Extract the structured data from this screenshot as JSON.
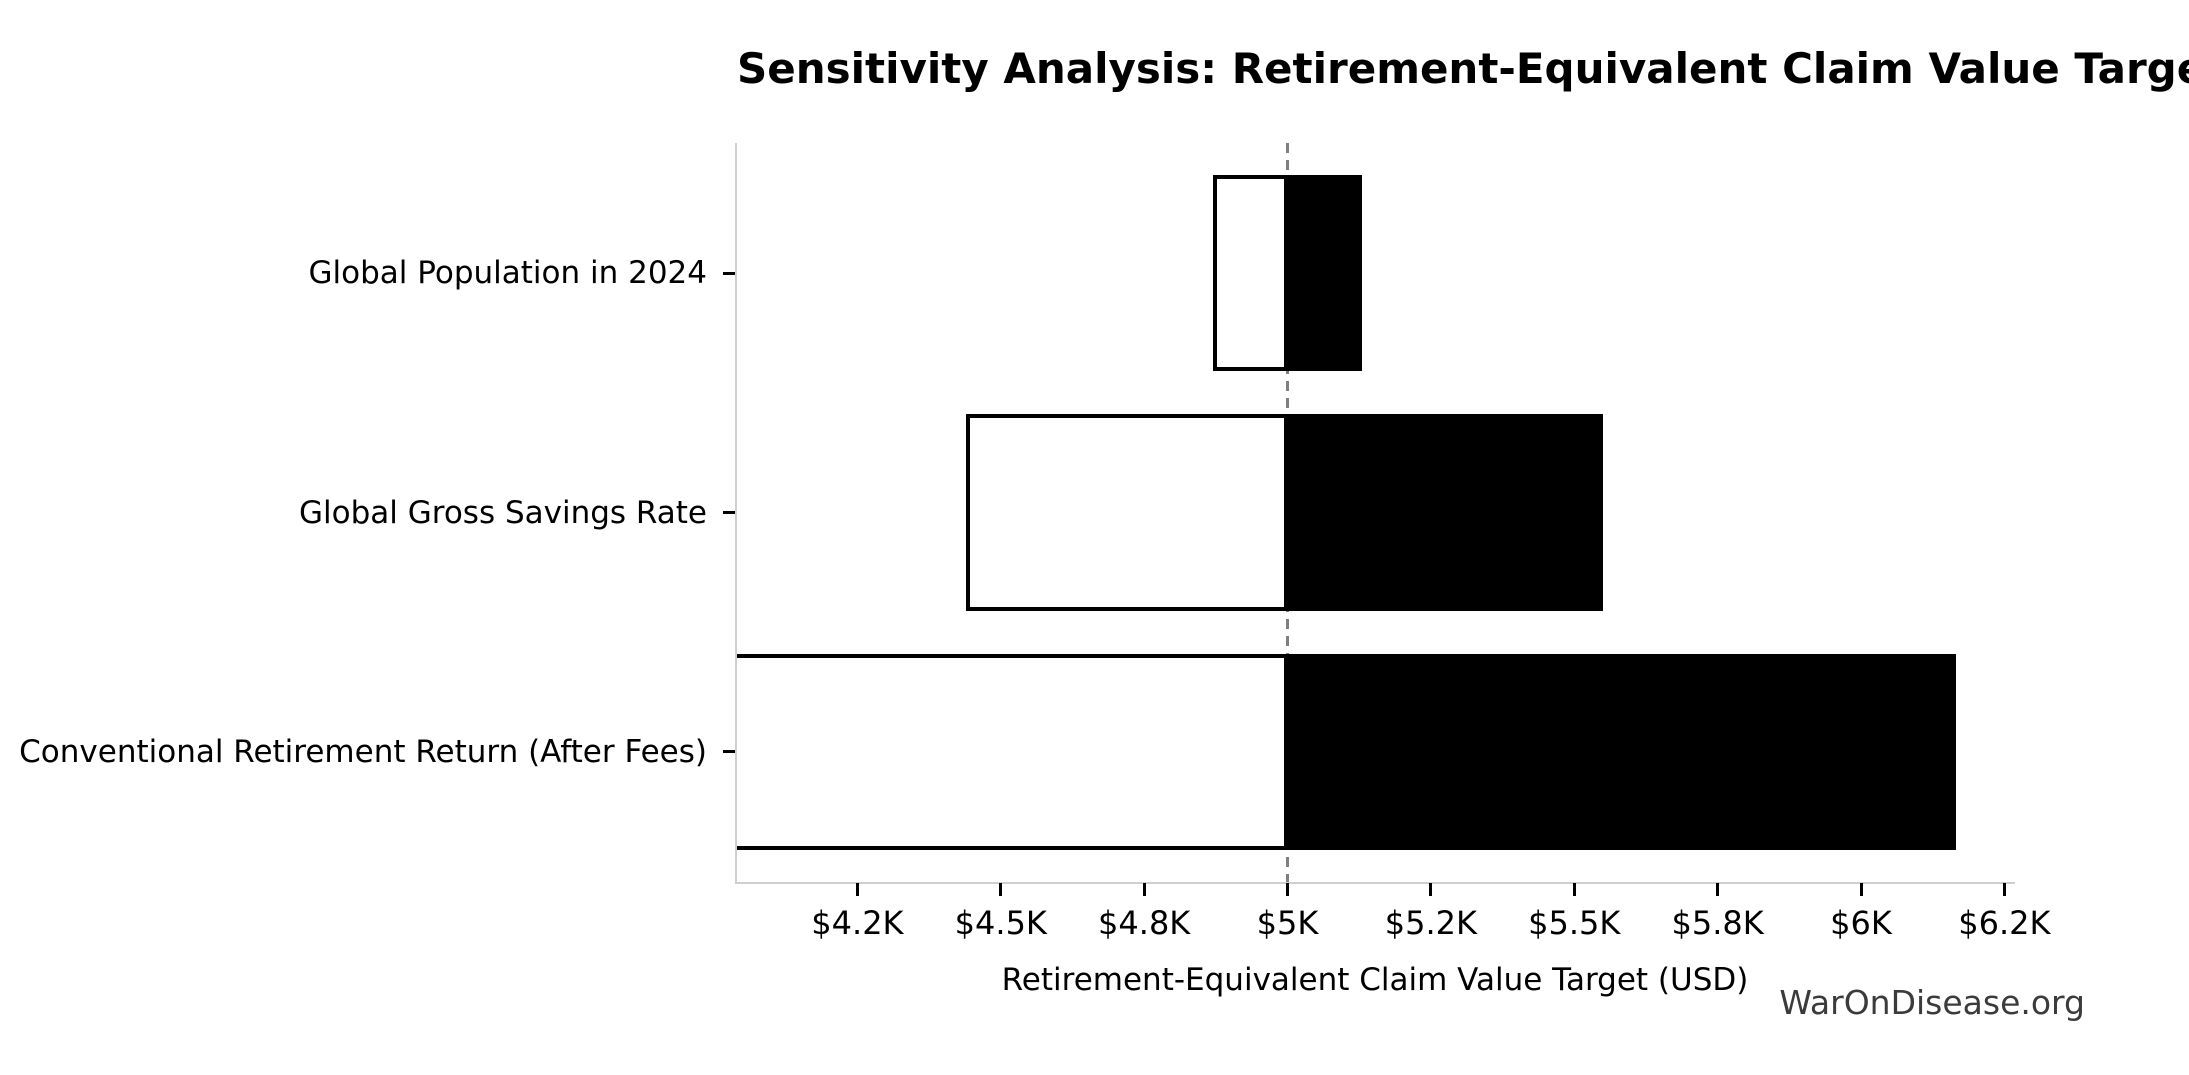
{
  "figure": {
    "watermark": "WarOnDisease.org"
  },
  "chart_data": {
    "type": "bar",
    "subtype": "horizontal-tornado-sensitivity",
    "title": "Sensitivity Analysis: Retirement-Equivalent Claim Value Target",
    "xlabel": "Retirement-Equivalent Claim Value Target (USD)",
    "ylabel": "",
    "baseline_value": 5000,
    "xlim": [
      4040,
      6265
    ],
    "x_tick_values": [
      4250,
      4500,
      4750,
      5000,
      5250,
      5500,
      5750,
      6000,
      6250
    ],
    "x_tick_labels": [
      "$4.2K",
      "$4.5K",
      "$4.8K",
      "$5K",
      "$5.2K",
      "$5.5K",
      "$5.8K",
      "$6K",
      "$6.2K"
    ],
    "categories": [
      "Global Population in 2024",
      "Global Gross Savings Rate",
      "Conventional Retirement Return (After Fees)"
    ],
    "bars": [
      {
        "category": "Global Population in 2024",
        "low": 4870,
        "high": 5130,
        "low_clipped_at_axis": false
      },
      {
        "category": "Global Gross Savings Rate",
        "low": 4440,
        "high": 5550,
        "low_clipped_at_axis": false
      },
      {
        "category": "Conventional Retirement Return (After Fees)",
        "low": 4040,
        "high": 6165,
        "low_clipped_at_axis": true
      }
    ],
    "grid": false,
    "legend": false,
    "baseline_line_style": "dashed",
    "colors": {
      "bar_below_baseline_fill": "#ffffff",
      "bar_above_baseline_fill": "#000000",
      "bar_edge": "#000000",
      "baseline_line": "#7f7f7f",
      "spine": "#cfcfcf",
      "tick": "#000000",
      "text": "#000000",
      "watermark_text": "#3b3b3b",
      "background": "#ffffff"
    }
  }
}
